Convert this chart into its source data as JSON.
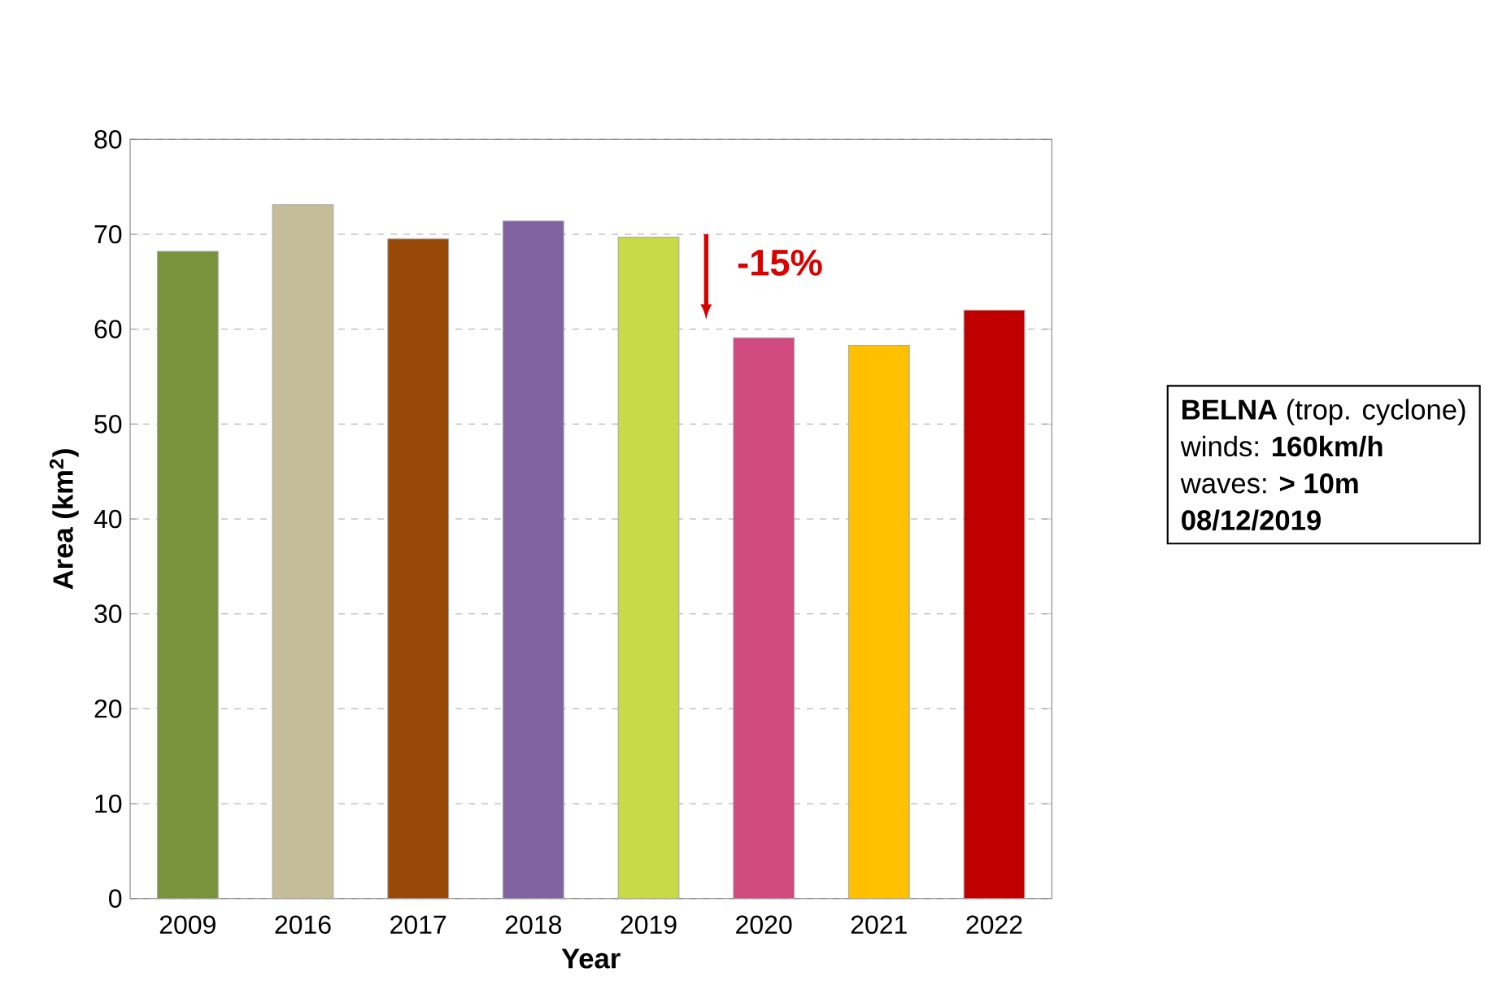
{
  "chart_data": {
    "type": "bar",
    "xlabel": "Year",
    "ylabel": "Area (km$^{2}$)",
    "categories": [
      "2009",
      "2016",
      "2017",
      "2018",
      "2019",
      "2020",
      "2021",
      "2022"
    ],
    "values": [
      68.2,
      73.1,
      69.5,
      71.4,
      69.7,
      59.1,
      58.3,
      62.0
    ],
    "colors": [
      "#77933c",
      "#c4bd97",
      "#984807",
      "#8064a2",
      "#c9da48",
      "#d04a80",
      "#ffc000",
      "#c00000"
    ],
    "ylim": [
      0,
      80
    ],
    "yticks": [
      0,
      10,
      20,
      30,
      40,
      50,
      60,
      70,
      80
    ],
    "grid": "y",
    "annotations": [
      "-15%",
      "**BELNA** (trop. cyclone)",
      "winds: **160km/h**",
      "waves: **> 10m**",
      "**08/12/2019**"
    ]
  }
}
